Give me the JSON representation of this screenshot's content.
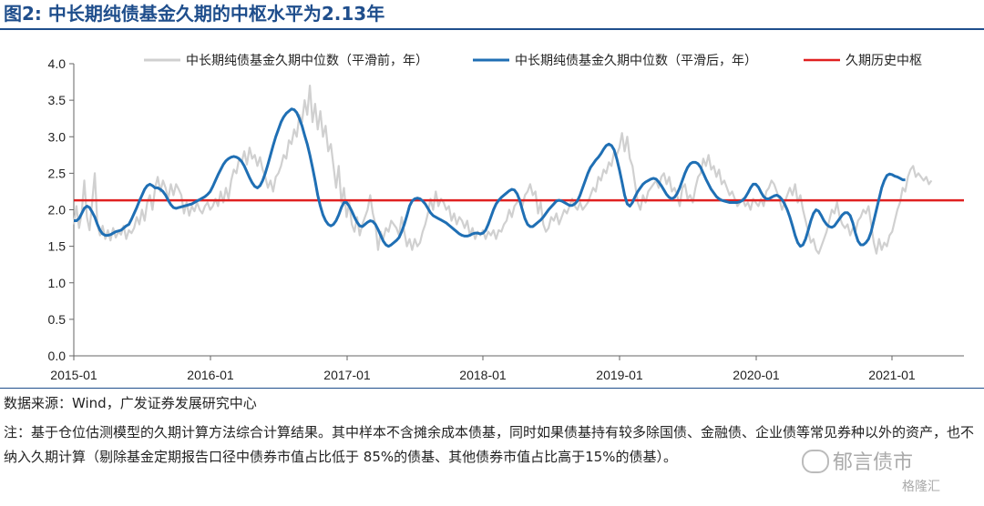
{
  "header": {
    "title": "图2:  中长期纯债基金久期的中枢水平为2.13年"
  },
  "chart_data": {
    "type": "line",
    "x_start": "2015-01",
    "x_end": "2021-06",
    "x_step": "1 week",
    "x_ticks": [
      "2015-01",
      "2016-01",
      "2017-01",
      "2018-01",
      "2019-01",
      "2020-01",
      "2021-01"
    ],
    "y_ticks": [
      "0.0",
      "0.5",
      "1.0",
      "1.5",
      "2.0",
      "2.5",
      "3.0",
      "3.5",
      "4.0"
    ],
    "ylim": [
      0,
      4.0
    ],
    "grid": false,
    "legend_position": "top",
    "series": [
      {
        "name": "中长期纯债基金久期中位数（平滑前，年）",
        "color": "#d0d0d0",
        "values": [
          1.8,
          2.05,
          1.75,
          1.95,
          2.4,
          1.9,
          1.72,
          2.1,
          2.5,
          1.8,
          1.65,
          1.78,
          1.6,
          1.72,
          1.58,
          1.75,
          1.62,
          1.7,
          1.66,
          1.78,
          1.6,
          1.72,
          1.68,
          1.75,
          1.9,
          1.8,
          2.0,
          1.85,
          2.1,
          2.2,
          2.0,
          2.3,
          2.45,
          2.25,
          2.4,
          2.3,
          2.15,
          2.35,
          2.2,
          2.35,
          2.28,
          2.2,
          1.95,
          2.1,
          1.92,
          2.05,
          1.98,
          2.1,
          2.0,
          1.95,
          2.05,
          2.1,
          2.0,
          2.05,
          2.15,
          2.05,
          2.25,
          2.1,
          2.3,
          2.15,
          2.4,
          2.55,
          2.5,
          2.7,
          2.65,
          2.8,
          2.62,
          2.85,
          2.7,
          2.75,
          2.6,
          2.72,
          2.55,
          2.45,
          2.3,
          2.4,
          2.25,
          2.45,
          2.5,
          2.6,
          2.75,
          2.7,
          2.95,
          2.9,
          3.1,
          3.0,
          3.3,
          3.2,
          3.5,
          3.3,
          3.7,
          3.2,
          3.45,
          3.1,
          3.35,
          3.0,
          3.15,
          2.8,
          2.9,
          2.6,
          2.3,
          2.6,
          2.1,
          2.3,
          1.9,
          2.1,
          1.8,
          1.7,
          1.9,
          1.65,
          1.8,
          1.9,
          2.0,
          2.2,
          1.95,
          1.8,
          1.45,
          1.7,
          1.6,
          1.75,
          1.7,
          1.85,
          1.8,
          1.75,
          1.65,
          1.9,
          1.7,
          1.5,
          1.6,
          1.45,
          1.6,
          1.5,
          1.55,
          1.7,
          1.8,
          1.95,
          2.15,
          2.0,
          2.25,
          2.05,
          2.15,
          2.1,
          2.0,
          2.05,
          1.85,
          1.95,
          1.8,
          1.9,
          1.85,
          1.75,
          1.85,
          1.65,
          1.75,
          1.6,
          1.7,
          1.65,
          1.72,
          1.6,
          1.7,
          1.65,
          1.72,
          1.6,
          1.72,
          1.7,
          1.8,
          1.85,
          2.0,
          1.9,
          2.05,
          2.1,
          2.15,
          2.05,
          2.2,
          2.25,
          2.35,
          2.2,
          2.25,
          1.95,
          2.1,
          1.8,
          1.7,
          1.75,
          1.9,
          1.85,
          1.95,
          1.8,
          1.9,
          2.0,
          1.95,
          2.05,
          2.15,
          2.05,
          2.0,
          2.1,
          2.0,
          2.05,
          2.1,
          2.2,
          2.3,
          2.25,
          2.45,
          2.4,
          2.55,
          2.5,
          2.65,
          2.6,
          2.8,
          2.75,
          2.85,
          3.05,
          2.8,
          3.0,
          2.7,
          2.6,
          2.35,
          2.1,
          2.0,
          2.2,
          2.1,
          2.25,
          2.3,
          2.35,
          2.4,
          2.3,
          2.45,
          2.5,
          2.35,
          2.45,
          2.25,
          2.3,
          2.2,
          2.05,
          2.3,
          2.35,
          2.15,
          2.2,
          2.1,
          2.3,
          2.45,
          2.5,
          2.7,
          2.6,
          2.75,
          2.55,
          2.6,
          2.45,
          2.55,
          2.35,
          2.4,
          2.3,
          2.2,
          2.25,
          2.15,
          2.05,
          2.1,
          2.15,
          2.05,
          2.1,
          2.0,
          2.15,
          2.1,
          2.05,
          2.15,
          2.05,
          2.25,
          2.3,
          2.4,
          2.35,
          2.25,
          2.15,
          2.0,
          2.1,
          2.2,
          2.3,
          2.2,
          2.35,
          2.1,
          2.2,
          2.0,
          1.85,
          1.7,
          1.55,
          1.6,
          1.45,
          1.4,
          1.5,
          1.6,
          1.7,
          1.85,
          2.0,
          1.95,
          2.1,
          1.9,
          1.8,
          1.75,
          1.8,
          1.65,
          1.75,
          1.7,
          1.85,
          1.9,
          2.0,
          1.95,
          2.05,
          1.8,
          1.55,
          1.4,
          1.6,
          1.45,
          1.55,
          1.5,
          1.65,
          1.7,
          1.85,
          2.0,
          2.1,
          2.3,
          2.25,
          2.45,
          2.55,
          2.6,
          2.45,
          2.5,
          2.45,
          2.4,
          2.45,
          2.35,
          2.4
        ]
      },
      {
        "name": "中长期纯债基金久期中位数（平滑后，年）",
        "color": "#1f6fb4",
        "values": [
          1.85,
          1.85,
          1.88,
          1.95,
          2.02,
          2.05,
          2.03,
          1.97,
          1.9,
          1.8,
          1.72,
          1.67,
          1.65,
          1.65,
          1.66,
          1.68,
          1.7,
          1.71,
          1.72,
          1.75,
          1.78,
          1.8,
          1.87,
          1.95,
          2.03,
          2.12,
          2.2,
          2.28,
          2.33,
          2.35,
          2.33,
          2.3,
          2.3,
          2.28,
          2.25,
          2.2,
          2.13,
          2.07,
          2.03,
          2.02,
          2.03,
          2.04,
          2.05,
          2.06,
          2.07,
          2.08,
          2.1,
          2.12,
          2.14,
          2.16,
          2.18,
          2.21,
          2.25,
          2.32,
          2.4,
          2.48,
          2.55,
          2.62,
          2.67,
          2.7,
          2.72,
          2.73,
          2.72,
          2.7,
          2.66,
          2.6,
          2.52,
          2.44,
          2.37,
          2.32,
          2.3,
          2.33,
          2.4,
          2.5,
          2.62,
          2.75,
          2.88,
          3.0,
          3.1,
          3.2,
          3.27,
          3.32,
          3.35,
          3.38,
          3.37,
          3.33,
          3.25,
          3.15,
          3.02,
          2.9,
          2.75,
          2.58,
          2.4,
          2.2,
          2.05,
          1.93,
          1.85,
          1.8,
          1.78,
          1.8,
          1.85,
          1.93,
          2.03,
          2.1,
          2.1,
          2.05,
          1.98,
          1.9,
          1.83,
          1.78,
          1.77,
          1.8,
          1.83,
          1.85,
          1.84,
          1.8,
          1.73,
          1.65,
          1.57,
          1.52,
          1.5,
          1.52,
          1.55,
          1.58,
          1.62,
          1.7,
          1.8,
          1.92,
          2.05,
          2.12,
          2.15,
          2.16,
          2.15,
          2.12,
          2.08,
          2.02,
          1.96,
          1.92,
          1.9,
          1.88,
          1.86,
          1.84,
          1.82,
          1.79,
          1.76,
          1.73,
          1.7,
          1.67,
          1.65,
          1.64,
          1.64,
          1.65,
          1.67,
          1.68,
          1.68,
          1.67,
          1.68,
          1.72,
          1.8,
          1.9,
          2.0,
          2.08,
          2.13,
          2.17,
          2.2,
          2.23,
          2.26,
          2.28,
          2.27,
          2.22,
          2.13,
          2.0,
          1.88,
          1.8,
          1.77,
          1.77,
          1.8,
          1.83,
          1.86,
          1.9,
          1.95,
          2.0,
          2.04,
          2.08,
          2.12,
          2.13,
          2.12,
          2.1,
          2.08,
          2.06,
          2.06,
          2.08,
          2.12,
          2.2,
          2.3,
          2.4,
          2.5,
          2.58,
          2.63,
          2.68,
          2.72,
          2.77,
          2.83,
          2.88,
          2.9,
          2.88,
          2.82,
          2.7,
          2.55,
          2.38,
          2.2,
          2.08,
          2.05,
          2.1,
          2.18,
          2.25,
          2.3,
          2.35,
          2.38,
          2.4,
          2.42,
          2.43,
          2.42,
          2.38,
          2.33,
          2.27,
          2.21,
          2.17,
          2.15,
          2.17,
          2.22,
          2.3,
          2.4,
          2.5,
          2.58,
          2.63,
          2.65,
          2.65,
          2.63,
          2.58,
          2.5,
          2.42,
          2.35,
          2.28,
          2.23,
          2.18,
          2.15,
          2.13,
          2.12,
          2.11,
          2.1,
          2.1,
          2.1,
          2.1,
          2.11,
          2.13,
          2.17,
          2.23,
          2.3,
          2.35,
          2.35,
          2.31,
          2.24,
          2.18,
          2.15,
          2.15,
          2.17,
          2.19,
          2.2,
          2.18,
          2.14,
          2.08,
          2.0,
          1.9,
          1.78,
          1.65,
          1.55,
          1.5,
          1.52,
          1.6,
          1.72,
          1.85,
          1.95,
          2.0,
          1.98,
          1.92,
          1.85,
          1.8,
          1.77,
          1.76,
          1.78,
          1.83,
          1.88,
          1.93,
          1.96,
          1.96,
          1.92,
          1.82,
          1.68,
          1.57,
          1.52,
          1.52,
          1.55,
          1.6,
          1.7,
          1.85,
          2.0,
          2.15,
          2.3,
          2.4,
          2.47,
          2.49,
          2.48,
          2.46,
          2.45,
          2.43,
          2.41,
          2.41
        ]
      },
      {
        "name": "久期历史中枢",
        "color": "#e02020",
        "constant": 2.13
      }
    ]
  },
  "footer": {
    "source": "数据来源：Wind，广发证券发展研究中心",
    "note": "注：基于仓位估测模型的久期计算方法综合计算结果。其中样本不含摊余成本债基，同时如果债基持有较多除国债、金融债、企业债等常见券种以外的资产，也不纳入久期计算（剔除基金定期报告口径中债券市值占比低于 85%的债基、其他债券市值占比高于15%的债基）。"
  },
  "watermark": {
    "text": "郁言债市",
    "sub": "格隆汇",
    "icon": "wechat-icon"
  }
}
